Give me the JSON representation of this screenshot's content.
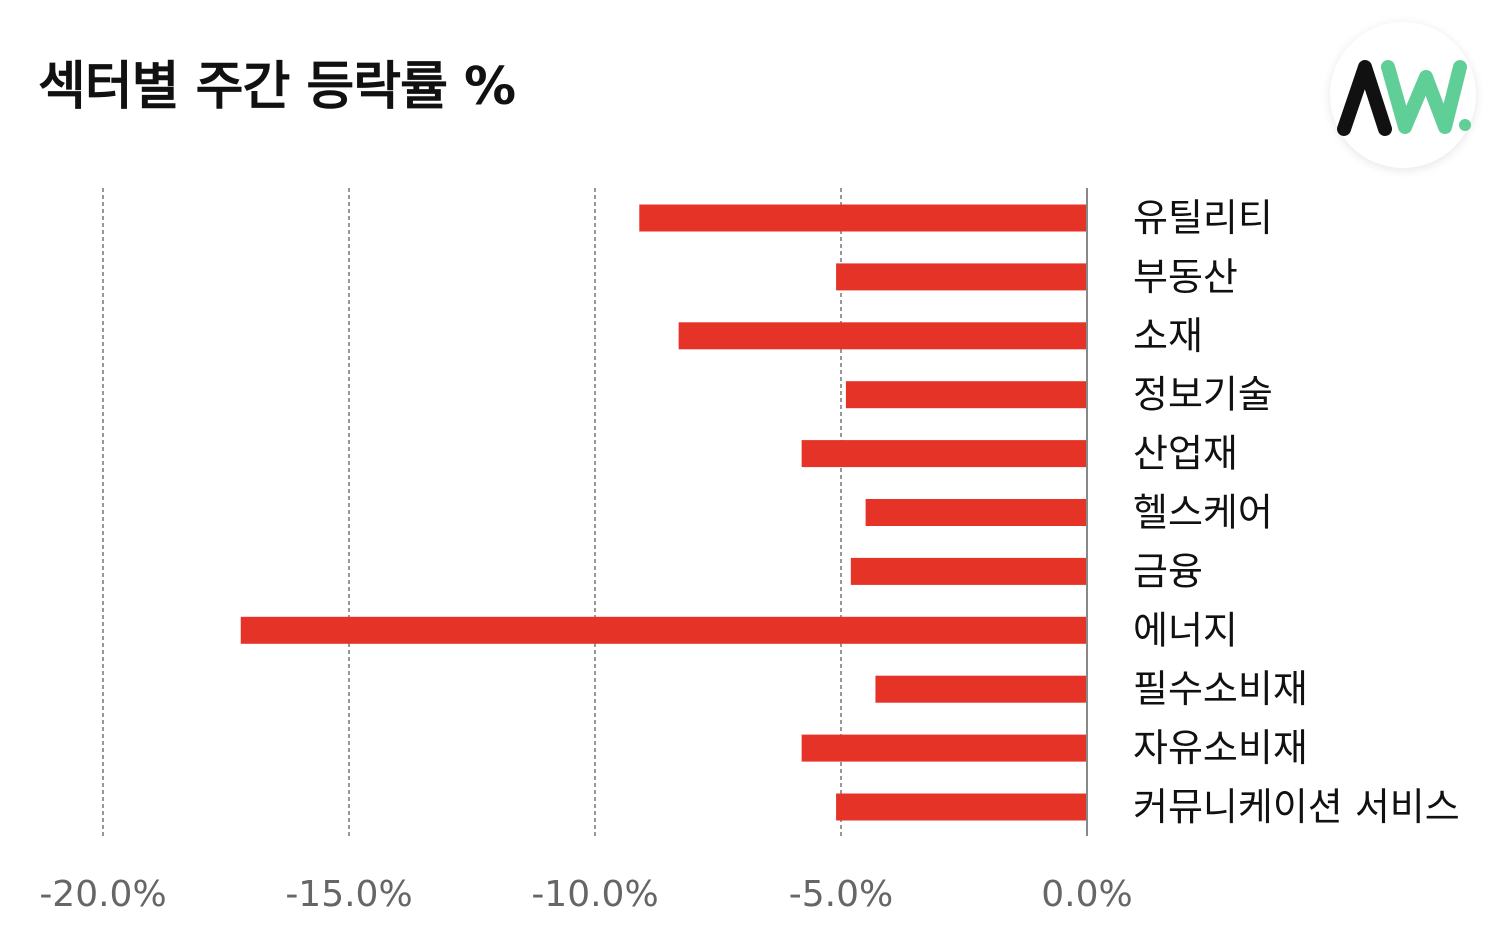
{
  "title": "섹터별 주간 등락률 %",
  "logo": {
    "name": "AW logo",
    "colors": {
      "dark": "#111111",
      "accent": "#5fcf97"
    }
  },
  "colors": {
    "bar": "#e63327",
    "grid": "#777777",
    "tick": "#666666"
  },
  "chart_data": {
    "type": "bar",
    "orientation": "horizontal",
    "title": "섹터별 주간 등락률 %",
    "categories": [
      "유틸리티",
      "부동산",
      "소재",
      "정보기술",
      "산업재",
      "헬스케어",
      "금융",
      "에너지",
      "필수소비재",
      "자유소비재",
      "커뮤니케이션 서비스"
    ],
    "values": [
      -9.1,
      -5.1,
      -8.3,
      -4.9,
      -5.8,
      -4.5,
      -4.8,
      -17.2,
      -4.3,
      -5.8,
      -5.1
    ],
    "xlim": [
      -20,
      0
    ],
    "xticks": [
      -20,
      -15,
      -10,
      -5,
      0
    ],
    "xtick_labels": [
      "-20.0%",
      "-15.0%",
      "-10.0%",
      "-5.0%",
      "0.0%"
    ],
    "grid": "vertical dashed",
    "category_labels_side": "right",
    "xlabel": "",
    "ylabel": ""
  }
}
